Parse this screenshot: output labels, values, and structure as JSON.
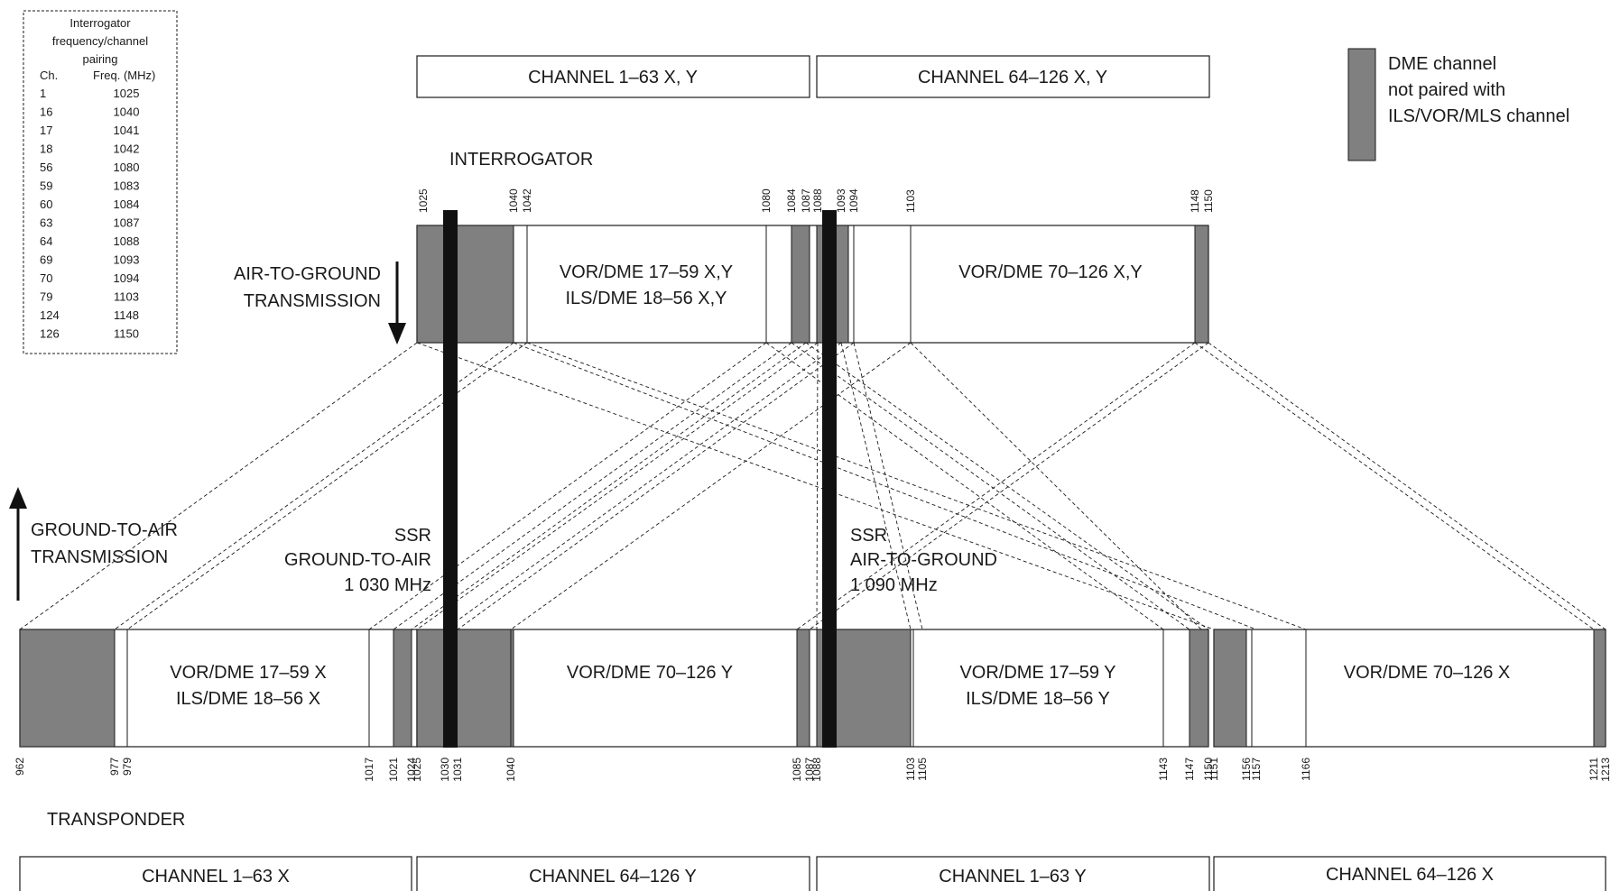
{
  "channel_boxes_top": [
    {
      "label": "CHANNEL 1–63 X, Y"
    },
    {
      "label": "CHANNEL 64–126 X, Y"
    }
  ],
  "channel_boxes_bottom": [
    {
      "label": "CHANNEL 1–63 X"
    },
    {
      "label": "CHANNEL 64–126 Y"
    },
    {
      "label": "CHANNEL 1–63 Y"
    },
    {
      "label": "CHANNEL 64–126 X"
    }
  ],
  "interrogator_label": "INTERROGATOR",
  "transponder_label": "TRANSPONDER",
  "air_to_ground": [
    "AIR-TO-GROUND",
    "TRANSMISSION"
  ],
  "ground_to_air": [
    "GROUND-TO-AIR",
    "TRANSMISSION"
  ],
  "ssr_left": [
    "SSR",
    "GROUND-TO-AIR",
    "1 030 MHz"
  ],
  "ssr_right": [
    "SSR",
    "AIR-TO-GROUND",
    "1 090 MHz"
  ],
  "legend": {
    "text": [
      "DME channel",
      "not paired with",
      "ILS/VOR/MLS channel"
    ],
    "color": "#808080"
  },
  "pairing_table": {
    "title": [
      "Interrogator",
      "frequency/channel",
      "pairing"
    ],
    "headers": [
      "Ch.",
      "Freq. (MHz)"
    ],
    "rows": [
      [
        "1",
        "1025"
      ],
      [
        "16",
        "1040"
      ],
      [
        "17",
        "1041"
      ],
      [
        "18",
        "1042"
      ],
      [
        "56",
        "1080"
      ],
      [
        "59",
        "1083"
      ],
      [
        "60",
        "1084"
      ],
      [
        "63",
        "1087"
      ],
      [
        "64",
        "1088"
      ],
      [
        "69",
        "1093"
      ],
      [
        "70",
        "1094"
      ],
      [
        "79",
        "1103"
      ],
      [
        "124",
        "1148"
      ],
      [
        "126",
        "1150"
      ]
    ]
  },
  "interrogator_band": {
    "ticks": [
      "1025",
      "1040",
      "1042",
      "1080",
      "1084",
      "1087",
      "1088",
      "1093",
      "1094",
      "1103",
      "1148",
      "1150"
    ],
    "labels": [
      [
        "VOR/DME 17–59 X,Y",
        "ILS/DME   18–56 X,Y"
      ],
      [
        "VOR/DME 70–126 X,Y"
      ]
    ]
  },
  "transponder_band": {
    "ticks": [
      "962",
      "977",
      "979",
      "1017",
      "1021",
      "1024",
      "1025",
      "1030",
      "1031",
      "1040",
      "1085",
      "1087",
      "1088",
      "1103",
      "1105",
      "1143",
      "1147",
      "1150",
      "1151",
      "1156",
      "1157",
      "1166",
      "1211",
      "1213"
    ],
    "labels": [
      [
        "VOR/DME 17–59 X",
        "ILS/DME   18–56 X"
      ],
      [
        "VOR/DME 70–126 Y"
      ],
      [
        "VOR/DME 17–59 Y",
        "ILS/DME   18–56 Y"
      ],
      [
        "VOR/DME 70–126 X"
      ]
    ]
  },
  "colors": {
    "unpaired_fill": "#808080",
    "ssr_bar": "#111111",
    "ink": "#1a1a1a"
  }
}
